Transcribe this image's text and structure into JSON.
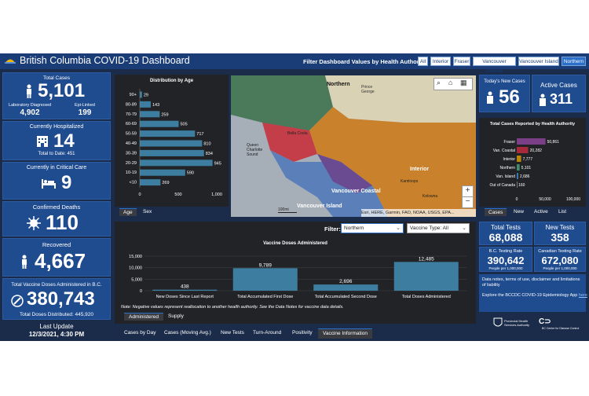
{
  "header": {
    "title": "British Columbia COVID-19 Dashboard",
    "filter_label": "Filter Dashboard Values by Health Authority:",
    "filters": [
      "All",
      "Interior",
      "Fraser",
      "Vancouver Coastal",
      "Vancouver Island",
      "Northern"
    ],
    "selected_filter": "Northern"
  },
  "left": {
    "total_cases_label": "Total Cases",
    "total_cases": "5,101",
    "lab_label": "Laboratory Diagnosed",
    "lab_value": "4,902",
    "epi_label": "Epi-Linked",
    "epi_value": "199",
    "hosp_label": "Currently Hospitalized",
    "hosp_value": "14",
    "hosp_total": "Total to Date: 451",
    "critical_label": "Currently in Critical Care",
    "critical_value": "9",
    "deaths_label": "Confirmed Deaths",
    "deaths_value": "110",
    "recovered_label": "Recovered",
    "recovered_value": "4,667",
    "vaccine_label": "Total Vaccine Doses Administered in B.C.",
    "vaccine_value": "380,743",
    "distributed": "Total Doses Distributed: 445,920",
    "update_label": "Last Update",
    "update_value": "12/3/2021, 4:30 PM"
  },
  "age_chart": {
    "title": "Distribution by Age",
    "tabs": [
      "Age",
      "Sex"
    ],
    "selected_tab": "Age"
  },
  "map": {
    "labels": [
      "Northern",
      "Prince George",
      "Bella Coola",
      "Queen Charlotte Sound",
      "Interior",
      "Kamloops",
      "Vancouver Coastal",
      "Vancouver Island",
      "Kelowna"
    ],
    "scale": "100mi",
    "attribution": "Esri, HERE, Garmin, FAO, NOAA, USGS, EPA..."
  },
  "right": {
    "new_cases_label": "Today's New Cases",
    "new_cases": "56",
    "active_label": "Active Cases",
    "active_value": "311",
    "ha_chart_title": "Total Cases Reported by Health Authority",
    "tabs": [
      "Cases",
      "New",
      "Active",
      "List"
    ],
    "selected_tab": "Cases",
    "tests_label": "Total Tests",
    "tests_value": "68,088",
    "new_tests_label": "New Tests",
    "new_tests_value": "358",
    "bc_rate_label": "B.C. Testing Rate",
    "bc_rate_value": "390,642",
    "bc_rate_unit": "People per 1,000,000",
    "ca_rate_label": "Canadian Testing Rate",
    "ca_rate_value": "672,080",
    "ca_rate_unit": "People per 1,000,000",
    "notes_1": "Data notes, terms of use, disclaimer and limitations of liability",
    "notes_2": "Explore the BCCDC COVID-19 Epidemiology App",
    "notes_link": "here",
    "phsa_name": "Provincial Health Services Authority",
    "cdc_name": "BC Centre for Disease Control"
  },
  "vaccine_panel": {
    "filter_label": "Filter:",
    "filter_value": "Northern",
    "type_value": "Vaccine Type: All",
    "title": "Vaccine Doses Administered",
    "note": "Note: Negative values represent reallocation to another health authority. See the Data Notes for vaccine data details.",
    "tabs": [
      "Administered",
      "Supply"
    ],
    "selected_tab": "Administered"
  },
  "bottom_tabs": [
    "Cases by Day",
    "Cases (Moving Avg.)",
    "New Tests",
    "Turn-Around",
    "Positivity",
    "Vaccine Information"
  ],
  "bottom_selected": "Vaccine Information",
  "colors": {
    "accent": "#2b6fc8",
    "card": "#1f4b8f",
    "bar": "#3d7ea0",
    "bg": "#1b2c4a"
  },
  "chart_data": [
    {
      "type": "bar",
      "orientation": "horizontal",
      "title": "Distribution by Age",
      "categories": [
        "90+",
        "80-89",
        "70-79",
        "60-69",
        "50-59",
        "40-49",
        "30-39",
        "20-29",
        "10-19",
        "<10"
      ],
      "values": [
        29,
        143,
        259,
        505,
        717,
        810,
        834,
        945,
        590,
        269
      ],
      "xlim": [
        0,
        1000
      ],
      "xticks": [
        "0",
        "500",
        "1,000"
      ]
    },
    {
      "type": "bar",
      "orientation": "horizontal",
      "title": "Total Cases Reported by Health Authority",
      "categories": [
        "Fraser",
        "Van. Coastal",
        "Interior",
        "Northern",
        "Van. Island",
        "Out of Canada"
      ],
      "values": [
        50861,
        20282,
        7777,
        5101,
        2686,
        160
      ],
      "labels": [
        "50,861",
        "20,282",
        "7,777",
        "5,101",
        "2,686",
        "160"
      ],
      "colors": [
        "#7a3f86",
        "#a82a3a",
        "#b8860b",
        "#3f8f6a",
        "#3d78b3",
        "#777777"
      ],
      "xlim": [
        0,
        100000
      ],
      "xticks": [
        "0",
        "50,000",
        "100,000"
      ]
    },
    {
      "type": "bar",
      "title": "Vaccine Doses Administered",
      "categories": [
        "New Doses Since Last Report",
        "Total Accumulated First Dose",
        "Total Accumulated Second Dose",
        "Total Doses Administered"
      ],
      "values": [
        438,
        9789,
        2696,
        12485
      ],
      "labels": [
        "438",
        "9,789",
        "2,696",
        "12,485"
      ],
      "ylim": [
        0,
        15000
      ],
      "yticks": [
        "15,000",
        "10,000",
        "5,000",
        "0"
      ]
    }
  ]
}
